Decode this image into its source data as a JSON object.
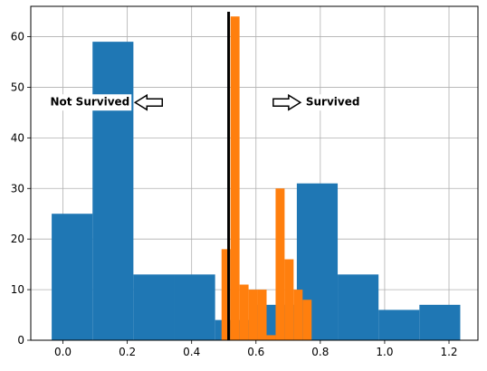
{
  "chart_data": {
    "type": "bar",
    "xlim": [
      -0.1,
      1.29
    ],
    "ylim": [
      0,
      66
    ],
    "grid": true,
    "x_ticks": [
      {
        "value": 0.0,
        "label": "0.0"
      },
      {
        "value": 0.2,
        "label": "0.2"
      },
      {
        "value": 0.4,
        "label": "0.4"
      },
      {
        "value": 0.6,
        "label": "0.6"
      },
      {
        "value": 0.8,
        "label": "0.8"
      },
      {
        "value": 1.0,
        "label": "1.0"
      },
      {
        "value": 1.2,
        "label": "1.2"
      }
    ],
    "y_ticks": [
      {
        "value": 0,
        "label": "0"
      },
      {
        "value": 10,
        "label": "10"
      },
      {
        "value": 20,
        "label": "20"
      },
      {
        "value": 30,
        "label": "30"
      },
      {
        "value": 40,
        "label": "40"
      },
      {
        "value": 50,
        "label": "50"
      },
      {
        "value": 60,
        "label": "60"
      }
    ],
    "series": [
      {
        "color": "#1f77b4",
        "bins": [
          {
            "x0": -0.035,
            "x1": 0.092,
            "value": 25
          },
          {
            "x0": 0.092,
            "x1": 0.219,
            "value": 59
          },
          {
            "x0": 0.219,
            "x1": 0.346,
            "value": 13
          },
          {
            "x0": 0.346,
            "x1": 0.473,
            "value": 13
          },
          {
            "x0": 0.473,
            "x1": 0.6,
            "value": 4
          },
          {
            "x0": 0.6,
            "x1": 0.727,
            "value": 7
          },
          {
            "x0": 0.727,
            "x1": 0.854,
            "value": 31
          },
          {
            "x0": 0.854,
            "x1": 0.981,
            "value": 13
          },
          {
            "x0": 0.981,
            "x1": 1.108,
            "value": 6
          },
          {
            "x0": 1.108,
            "x1": 1.235,
            "value": 7
          }
        ]
      },
      {
        "color": "#ff7f0e",
        "bins": [
          {
            "x0": 0.493,
            "x1": 0.521,
            "value": 18
          },
          {
            "x0": 0.521,
            "x1": 0.549,
            "value": 64
          },
          {
            "x0": 0.549,
            "x1": 0.577,
            "value": 11
          },
          {
            "x0": 0.577,
            "x1": 0.605,
            "value": 10
          },
          {
            "x0": 0.605,
            "x1": 0.633,
            "value": 10
          },
          {
            "x0": 0.633,
            "x1": 0.661,
            "value": 1
          },
          {
            "x0": 0.661,
            "x1": 0.689,
            "value": 30
          },
          {
            "x0": 0.689,
            "x1": 0.717,
            "value": 16
          },
          {
            "x0": 0.717,
            "x1": 0.745,
            "value": 10
          },
          {
            "x0": 0.745,
            "x1": 0.773,
            "value": 8
          }
        ]
      }
    ],
    "threshold_line": {
      "x": 0.515,
      "color": "#000000"
    },
    "annotations": [
      {
        "text": "Not Survived",
        "x": 0.275,
        "y": 47,
        "arrow": "left"
      },
      {
        "text": "Survived",
        "x": 0.755,
        "y": 47,
        "arrow": "right"
      }
    ]
  }
}
